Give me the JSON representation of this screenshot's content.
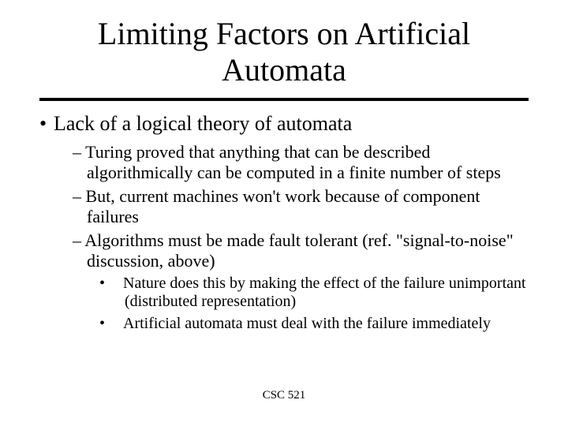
{
  "title_line1": "Limiting Factors on Artificial",
  "title_line2": "Automata",
  "bullet1": "Lack of a logical theory of automata",
  "sub1": "– Turing proved that anything that can be described algorithmically can be computed in a finite number of steps",
  "sub2": "– But, current machines won't work because of component failures",
  "sub3": "– Algorithms must be made fault tolerant (ref. \"signal-to-noise\" discussion, above)",
  "subsub1": "Nature does this by making the effect of the failure unimportant (distributed representation)",
  "subsub2": "Artificial automata must deal with the failure immediately",
  "footer": "CSC 521",
  "colors": {
    "text": "#000000",
    "background": "#ffffff",
    "rule": "#000000"
  },
  "fonts": {
    "family": "Times New Roman",
    "title_size": 40,
    "lvl1_size": 26,
    "lvl2_size": 22,
    "lvl3_size": 20,
    "footer_size": 15
  },
  "dot": "•"
}
